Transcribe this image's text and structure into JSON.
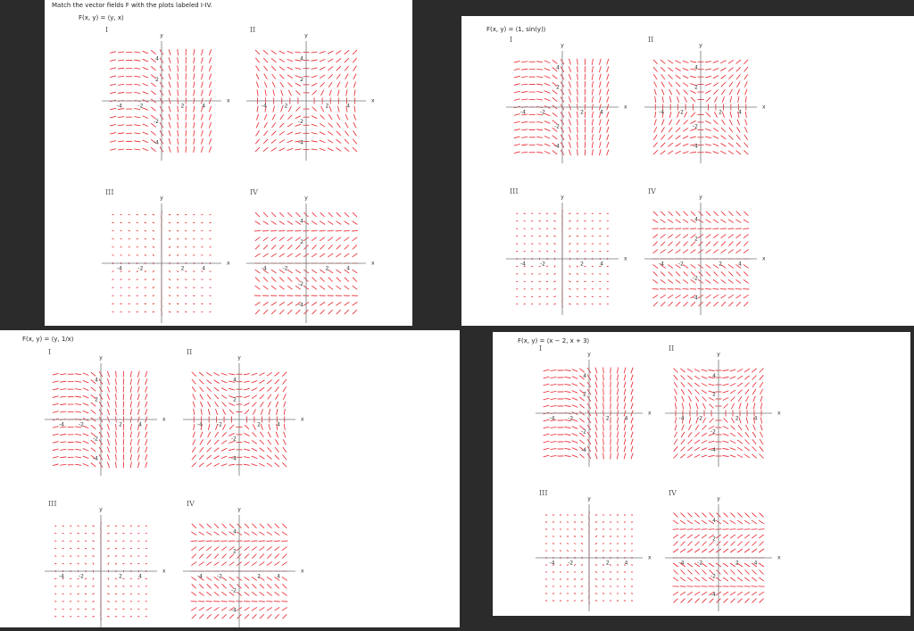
{
  "header": {
    "title": "Match the vector fields F with the plots labeled I-IV."
  },
  "panels": [
    {
      "formula": "F(x, y) = ⟨y, x⟩"
    },
    {
      "formula": "F(x, y) = ⟨1, sin(y)⟩"
    },
    {
      "formula": "F(x, y) = ⟨y, 1/x⟩"
    },
    {
      "formula": "F(x, y) = ⟨x − 2, x + 3⟩"
    }
  ],
  "plots": [
    {
      "label": "I",
      "x_axis": "x",
      "y_axis": "y",
      "xticks": [
        -4,
        -2,
        2,
        4
      ],
      "yticks": [
        4,
        2,
        -2,
        -4
      ]
    },
    {
      "label": "II",
      "x_axis": "x",
      "y_axis": "y",
      "xticks": [
        -4,
        -2,
        2,
        4
      ],
      "yticks": [
        4,
        2,
        -2,
        -4
      ]
    },
    {
      "label": "III",
      "x_axis": "x",
      "y_axis": "y",
      "xticks": [
        -4,
        -2,
        2,
        4
      ],
      "yticks": []
    },
    {
      "label": "IV",
      "x_axis": "x",
      "y_axis": "y",
      "xticks": [
        -4,
        -2,
        2,
        4
      ],
      "yticks": [
        4,
        2,
        -2,
        -4
      ]
    }
  ]
}
